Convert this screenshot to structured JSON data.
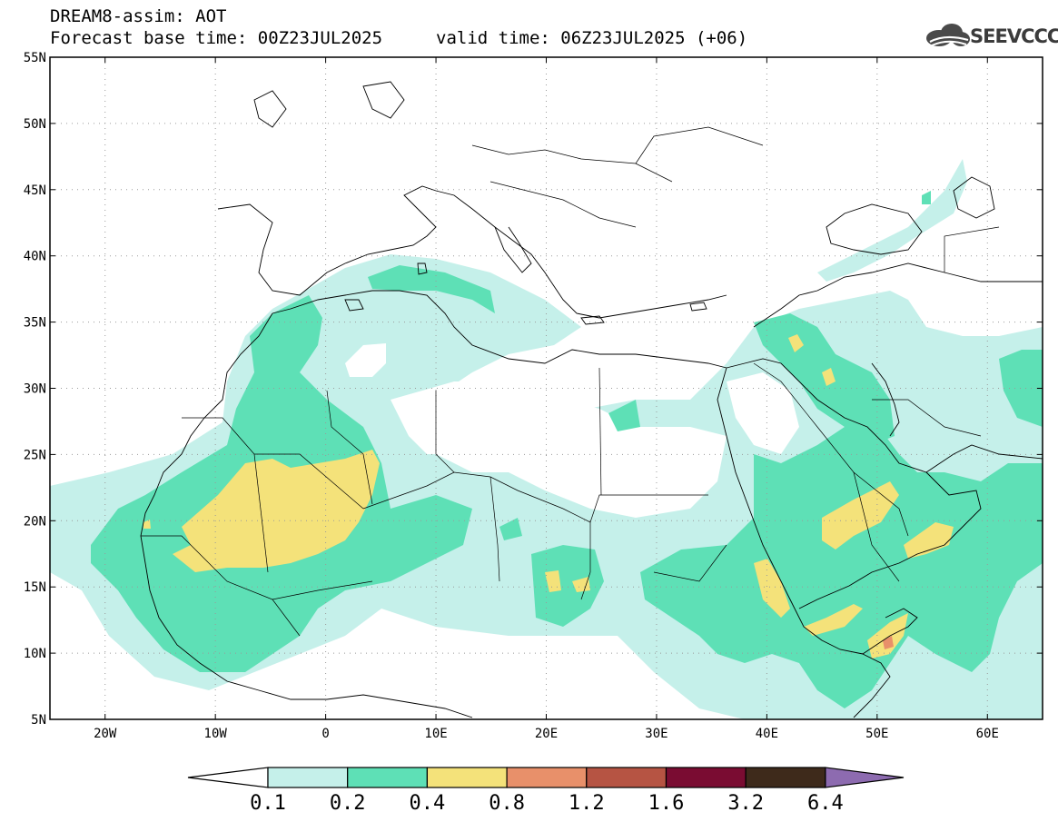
{
  "header": {
    "title": "DREAM8-assim: AOT",
    "forecast": "Forecast base time: 00Z23JUL2025",
    "valid": "valid time: 06Z23JUL2025 (+06)",
    "logo_text": "SEEVCCC",
    "logo_icon": "cloud-icon"
  },
  "map": {
    "lon_range": [
      -25,
      65
    ],
    "lat_range": [
      5,
      55
    ],
    "lat_ticks": [
      "5N",
      "10N",
      "15N",
      "20N",
      "25N",
      "30N",
      "35N",
      "40N",
      "45N",
      "50N",
      "55N"
    ],
    "lon_ticks": [
      "20W",
      "10W",
      "0",
      "10E",
      "20E",
      "30E",
      "40E",
      "50E",
      "60E"
    ],
    "grid": "dotted"
  },
  "colorbar": {
    "levels": [
      "0.1",
      "0.2",
      "0.4",
      "0.8",
      "1.2",
      "1.6",
      "3.2",
      "6.4"
    ],
    "colors": [
      "#ffffff",
      "#c5f0ea",
      "#5ee0b6",
      "#f4e27a",
      "#e8906a",
      "#b65443",
      "#7a0c32",
      "#3e2a1b",
      "#8d6bb0"
    ],
    "extend": "both"
  }
}
